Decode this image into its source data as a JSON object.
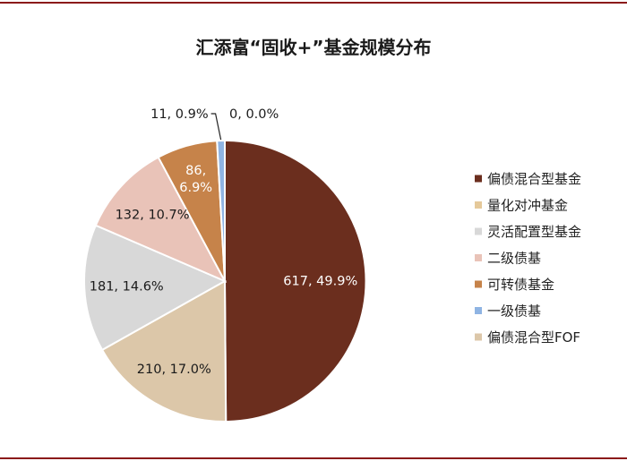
{
  "chart_data": {
    "type": "pie",
    "title": "汇添富“固收+”基金规模分布",
    "start_angle_deg": 0,
    "direction": "clockwise",
    "legend_position": "right",
    "slices": [
      {
        "name": "偏债混合型基金",
        "value": 617,
        "percent_label": "49.9%",
        "label": "617, 49.9%",
        "color": "#6b2e1e",
        "label_color": "#ffffff"
      },
      {
        "name": "偏债混合型FOF",
        "value": 210,
        "percent_label": "17.0%",
        "label": "210, 17.0%",
        "color": "#dcc7a9",
        "label_color": "#1a1a1a"
      },
      {
        "name": "灵活配置型基金",
        "value": 181,
        "percent_label": "14.6%",
        "label": "181, 14.6%",
        "color": "#d8d8d8",
        "label_color": "#1a1a1a"
      },
      {
        "name": "二级债基",
        "value": 132,
        "percent_label": "10.7%",
        "label": "132, 10.7%",
        "color": "#e9c3b8",
        "label_color": "#1a1a1a"
      },
      {
        "name": "可转债基金",
        "value": 86,
        "percent_label": "6.9%",
        "label_line1": "86,",
        "label_line2": "6.9%",
        "color": "#c6834a",
        "label_color": "#ffffff"
      },
      {
        "name": "一级债基",
        "value": 11,
        "percent_label": "0.9%",
        "label": "11, 0.9%",
        "color": "#8fb4e3",
        "label_color": "#1a1a1a"
      },
      {
        "name": "量化对冲基金",
        "value": 0,
        "percent_label": "0.0%",
        "label": "0, 0.0%",
        "color": "#e5c99a",
        "label_color": "#1a1a1a"
      }
    ],
    "legend": [
      {
        "name": "偏债混合型基金",
        "color": "#6b2e1e"
      },
      {
        "name": "量化对冲基金",
        "color": "#e5c99a"
      },
      {
        "name": "灵活配置型基金",
        "color": "#d8d8d8"
      },
      {
        "name": "二级债基",
        "color": "#e9c3b8"
      },
      {
        "name": "可转债基金",
        "color": "#c6834a"
      },
      {
        "name": "一级债基",
        "color": "#8fb4e3"
      },
      {
        "name": "偏债混合型FOF",
        "color": "#dcc7a9"
      }
    ]
  }
}
